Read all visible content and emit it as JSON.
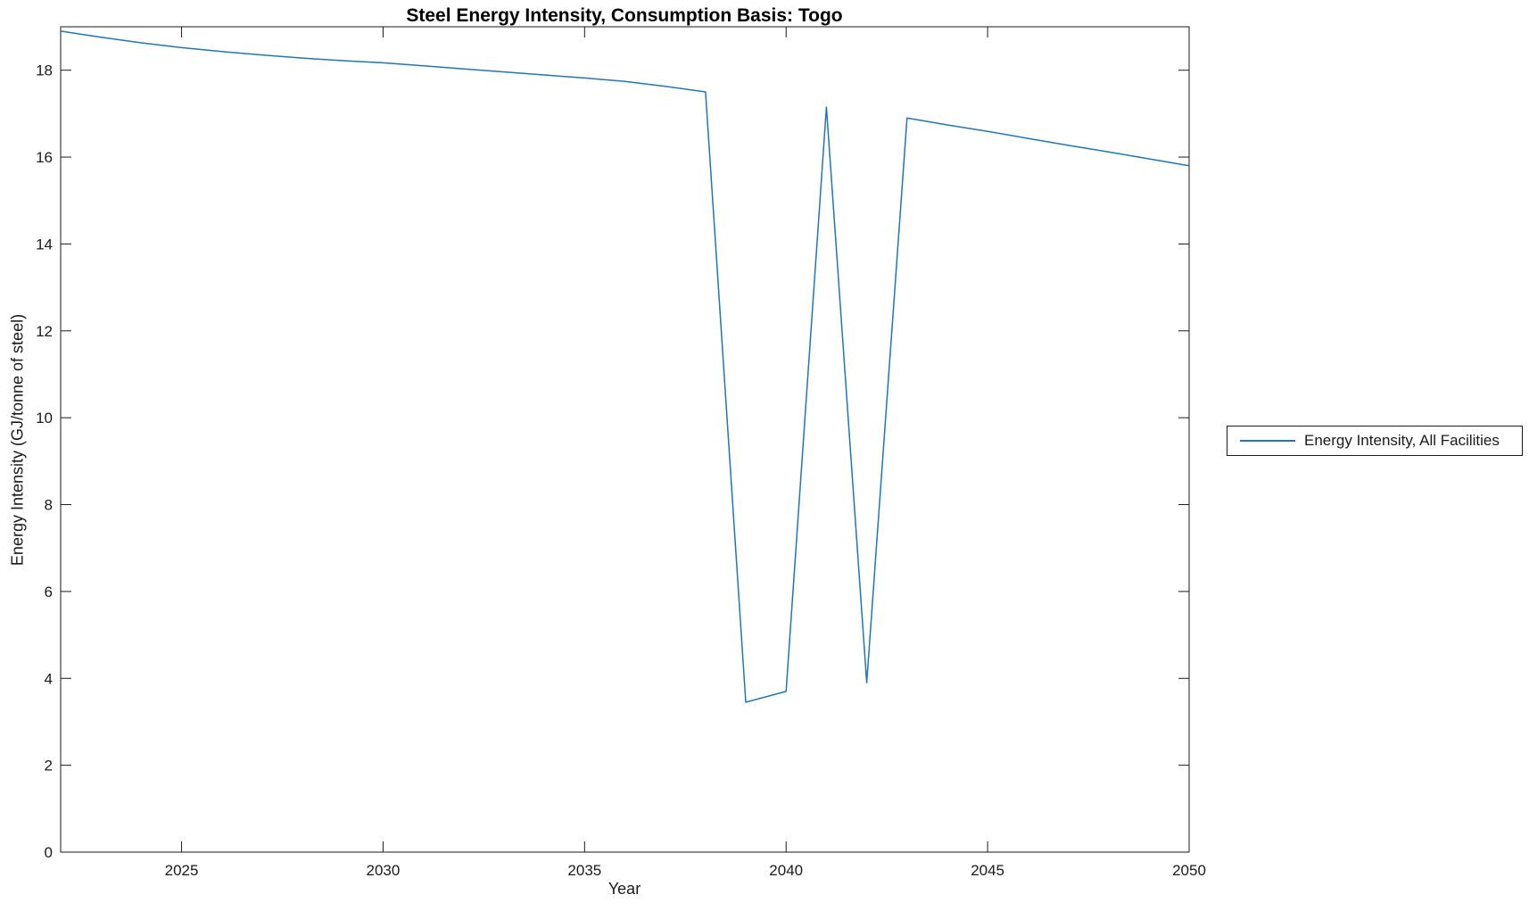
{
  "chart_data": {
    "type": "line",
    "title": "Steel Energy Intensity, Consumption Basis: Togo",
    "xlabel": "Year",
    "ylabel": "Energy Intensity (GJ/tonne of steel)",
    "xlim": [
      2022,
      2050
    ],
    "ylim": [
      0,
      19
    ],
    "xticks": [
      2025,
      2030,
      2035,
      2040,
      2045,
      2050
    ],
    "yticks": [
      0,
      2,
      4,
      6,
      8,
      10,
      12,
      14,
      16,
      18
    ],
    "grid": false,
    "legend_position": "outside-right",
    "colors": {
      "line": "#1f77b4",
      "axis": "#1a1a1a",
      "background": "#ffffff"
    },
    "series": [
      {
        "name": "Energy Intensity, All Facilities",
        "x": [
          2022,
          2023,
          2024,
          2025,
          2026,
          2027,
          2028,
          2029,
          2030,
          2031,
          2032,
          2033,
          2034,
          2035,
          2036,
          2037,
          2038,
          2039,
          2040,
          2041,
          2042,
          2043,
          2044,
          2045,
          2046,
          2047,
          2048,
          2049,
          2050
        ],
        "values": [
          18.9,
          18.76,
          18.63,
          18.52,
          18.43,
          18.35,
          18.28,
          18.22,
          18.17,
          18.1,
          18.03,
          17.96,
          17.89,
          17.82,
          17.74,
          17.63,
          17.5,
          3.45,
          3.7,
          17.15,
          3.9,
          16.9,
          16.74,
          16.59,
          16.43,
          16.27,
          16.12,
          15.96,
          15.8
        ]
      }
    ]
  }
}
